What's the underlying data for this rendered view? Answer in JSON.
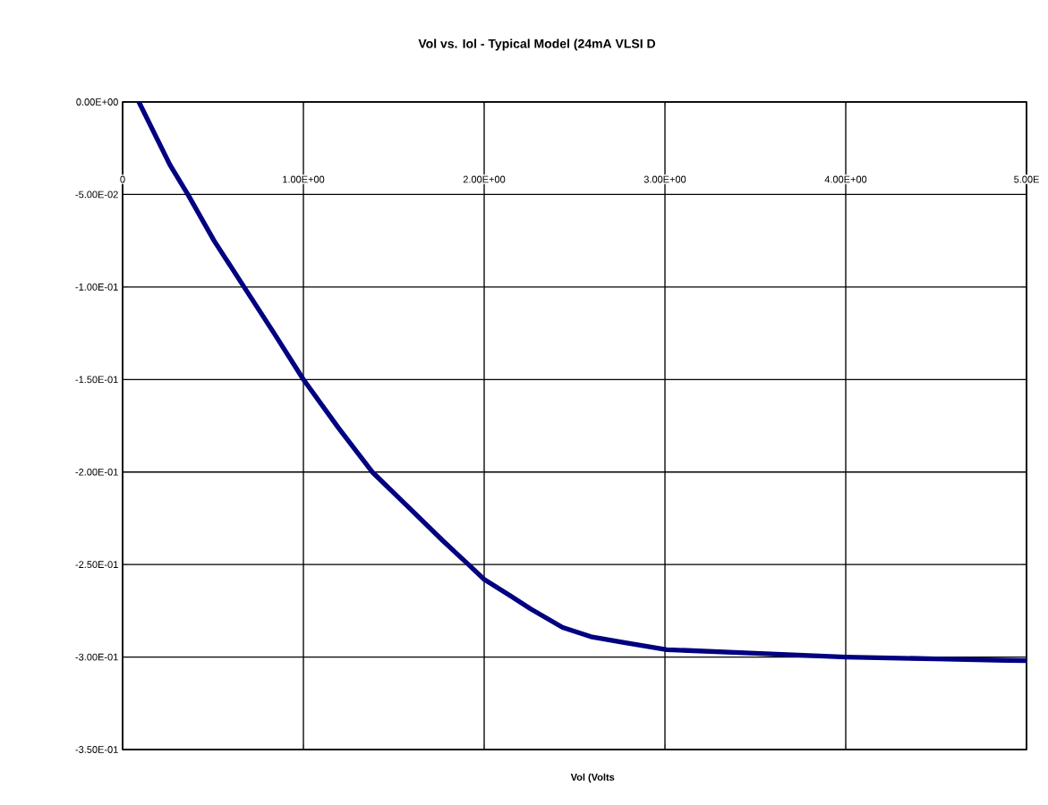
{
  "chart_data": {
    "type": "line",
    "title": "Vol vs. Iol - Typical Model (24mA VLSI D",
    "xlabel": "Vol (Volts",
    "xlim": [
      0,
      5
    ],
    "ylim": [
      -0.35,
      0
    ],
    "xticks": [
      {
        "value": 0,
        "label": "0"
      },
      {
        "value": 1,
        "label": "1.00E+00"
      },
      {
        "value": 2,
        "label": "2.00E+00"
      },
      {
        "value": 3,
        "label": "3.00E+00"
      },
      {
        "value": 4,
        "label": "4.00E+00"
      },
      {
        "value": 5,
        "label": "5.00E"
      }
    ],
    "yticks": [
      {
        "value": 0,
        "label": "0.00E+00"
      },
      {
        "value": -0.05,
        "label": "-5.00E-02"
      },
      {
        "value": -0.1,
        "label": "-1.00E-01"
      },
      {
        "value": -0.15,
        "label": "-1.50E-01"
      },
      {
        "value": -0.2,
        "label": "-2.00E-01"
      },
      {
        "value": -0.25,
        "label": "-2.50E-01"
      },
      {
        "value": -0.3,
        "label": "-3.00E-01"
      },
      {
        "value": -0.35,
        "label": "-3.50E-01"
      }
    ],
    "grid": true,
    "x": [
      0.09,
      0.262,
      0.361,
      0.506,
      0.672,
      0.838,
      1.0,
      1.193,
      1.381,
      1.592,
      1.77,
      1.913,
      2.0,
      2.146,
      2.257,
      2.434,
      2.59,
      2.767,
      3.01,
      3.5,
      4.0,
      4.5,
      5.0
    ],
    "values": [
      0.0,
      -0.034,
      -0.05,
      -0.075,
      -0.1,
      -0.125,
      -0.15,
      -0.176,
      -0.2,
      -0.22,
      -0.237,
      -0.25,
      -0.258,
      -0.267,
      -0.274,
      -0.284,
      -0.289,
      -0.292,
      -0.296,
      -0.298,
      -0.3,
      -0.301,
      -0.302
    ],
    "color": "#000080"
  }
}
